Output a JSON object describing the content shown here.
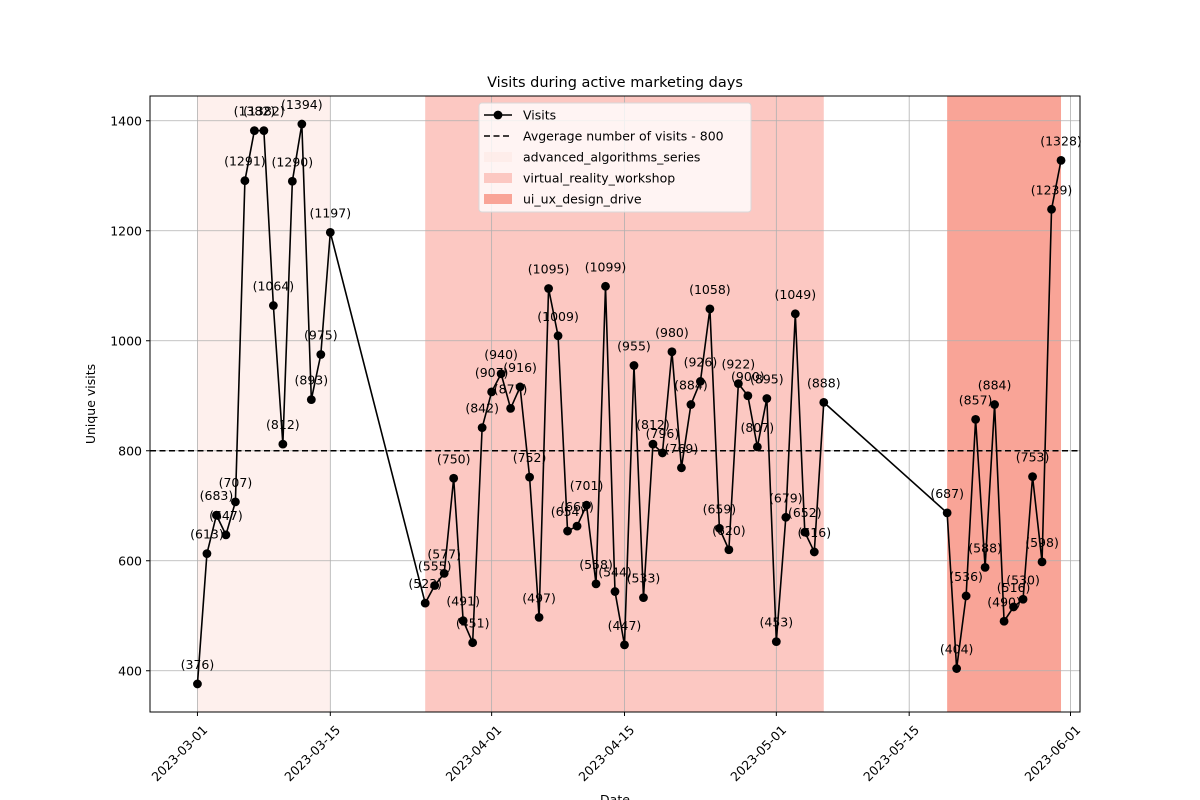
{
  "chart_data": {
    "type": "line",
    "title": "Visits during active marketing days",
    "xlabel": "Date",
    "ylabel": "Unique visits",
    "x_range": [
      "2023-02-24",
      "2023-06-02"
    ],
    "ylim": [
      325,
      1445
    ],
    "grid": true,
    "legend_position": "top-center",
    "y_ticks": [
      400,
      600,
      800,
      1000,
      1200,
      1400
    ],
    "x_ticks": [
      "2023-03-01",
      "2023-03-15",
      "2023-04-01",
      "2023-04-15",
      "2023-05-01",
      "2023-05-15",
      "2023-06-01"
    ],
    "reference_line": {
      "label": "Avgerage number of visits - 800",
      "value": 800
    },
    "periods": [
      {
        "name": "advanced_algorithms_series",
        "start": "2023-03-01",
        "end": "2023-03-15",
        "color": "#fde9e6",
        "opacity": 0.7
      },
      {
        "name": "virtual_reality_workshop",
        "start": "2023-03-25",
        "end": "2023-05-06",
        "color": "#fcc8c2",
        "opacity": 1
      },
      {
        "name": "ui_ux_design_drive",
        "start": "2023-05-19",
        "end": "2023-05-31",
        "color": "#f9a497",
        "opacity": 1
      }
    ],
    "series": [
      {
        "name": "Visits",
        "color": "#000000",
        "points": [
          {
            "x": "2023-03-01",
            "y": 376
          },
          {
            "x": "2023-03-02",
            "y": 613
          },
          {
            "x": "2023-03-03",
            "y": 683
          },
          {
            "x": "2023-03-04",
            "y": 647
          },
          {
            "x": "2023-03-05",
            "y": 707
          },
          {
            "x": "2023-03-06",
            "y": 1291
          },
          {
            "x": "2023-03-07",
            "y": 1382
          },
          {
            "x": "2023-03-08",
            "y": 1382
          },
          {
            "x": "2023-03-09",
            "y": 1064
          },
          {
            "x": "2023-03-10",
            "y": 812
          },
          {
            "x": "2023-03-11",
            "y": 1290
          },
          {
            "x": "2023-03-12",
            "y": 1394
          },
          {
            "x": "2023-03-13",
            "y": 893
          },
          {
            "x": "2023-03-14",
            "y": 975
          },
          {
            "x": "2023-03-15",
            "y": 1197
          },
          {
            "x": "2023-03-25",
            "y": 523
          },
          {
            "x": "2023-03-26",
            "y": 555
          },
          {
            "x": "2023-03-27",
            "y": 577
          },
          {
            "x": "2023-03-28",
            "y": 750
          },
          {
            "x": "2023-03-29",
            "y": 491
          },
          {
            "x": "2023-03-30",
            "y": 451
          },
          {
            "x": "2023-03-31",
            "y": 842
          },
          {
            "x": "2023-04-01",
            "y": 907
          },
          {
            "x": "2023-04-02",
            "y": 940
          },
          {
            "x": "2023-04-03",
            "y": 877
          },
          {
            "x": "2023-04-04",
            "y": 916
          },
          {
            "x": "2023-04-05",
            "y": 752
          },
          {
            "x": "2023-04-06",
            "y": 497
          },
          {
            "x": "2023-04-07",
            "y": 1095
          },
          {
            "x": "2023-04-08",
            "y": 1009
          },
          {
            "x": "2023-04-09",
            "y": 654
          },
          {
            "x": "2023-04-10",
            "y": 663
          },
          {
            "x": "2023-04-11",
            "y": 701
          },
          {
            "x": "2023-04-12",
            "y": 558
          },
          {
            "x": "2023-04-13",
            "y": 1099
          },
          {
            "x": "2023-04-14",
            "y": 544
          },
          {
            "x": "2023-04-15",
            "y": 447
          },
          {
            "x": "2023-04-16",
            "y": 955
          },
          {
            "x": "2023-04-17",
            "y": 533
          },
          {
            "x": "2023-04-18",
            "y": 812
          },
          {
            "x": "2023-04-19",
            "y": 796
          },
          {
            "x": "2023-04-20",
            "y": 980
          },
          {
            "x": "2023-04-21",
            "y": 769
          },
          {
            "x": "2023-04-22",
            "y": 884
          },
          {
            "x": "2023-04-23",
            "y": 926
          },
          {
            "x": "2023-04-24",
            "y": 1058
          },
          {
            "x": "2023-04-25",
            "y": 659
          },
          {
            "x": "2023-04-26",
            "y": 620
          },
          {
            "x": "2023-04-27",
            "y": 922
          },
          {
            "x": "2023-04-28",
            "y": 900
          },
          {
            "x": "2023-04-29",
            "y": 807
          },
          {
            "x": "2023-04-30",
            "y": 895
          },
          {
            "x": "2023-05-01",
            "y": 453
          },
          {
            "x": "2023-05-02",
            "y": 679
          },
          {
            "x": "2023-05-03",
            "y": 1049
          },
          {
            "x": "2023-05-04",
            "y": 652
          },
          {
            "x": "2023-05-05",
            "y": 616
          },
          {
            "x": "2023-05-06",
            "y": 888
          },
          {
            "x": "2023-05-19",
            "y": 687
          },
          {
            "x": "2023-05-20",
            "y": 404
          },
          {
            "x": "2023-05-21",
            "y": 536
          },
          {
            "x": "2023-05-22",
            "y": 857
          },
          {
            "x": "2023-05-23",
            "y": 588
          },
          {
            "x": "2023-05-24",
            "y": 884
          },
          {
            "x": "2023-05-25",
            "y": 490
          },
          {
            "x": "2023-05-26",
            "y": 516
          },
          {
            "x": "2023-05-27",
            "y": 530
          },
          {
            "x": "2023-05-28",
            "y": 753
          },
          {
            "x": "2023-05-29",
            "y": 598
          },
          {
            "x": "2023-05-30",
            "y": 1239
          },
          {
            "x": "2023-05-31",
            "y": 1328
          }
        ]
      }
    ]
  }
}
